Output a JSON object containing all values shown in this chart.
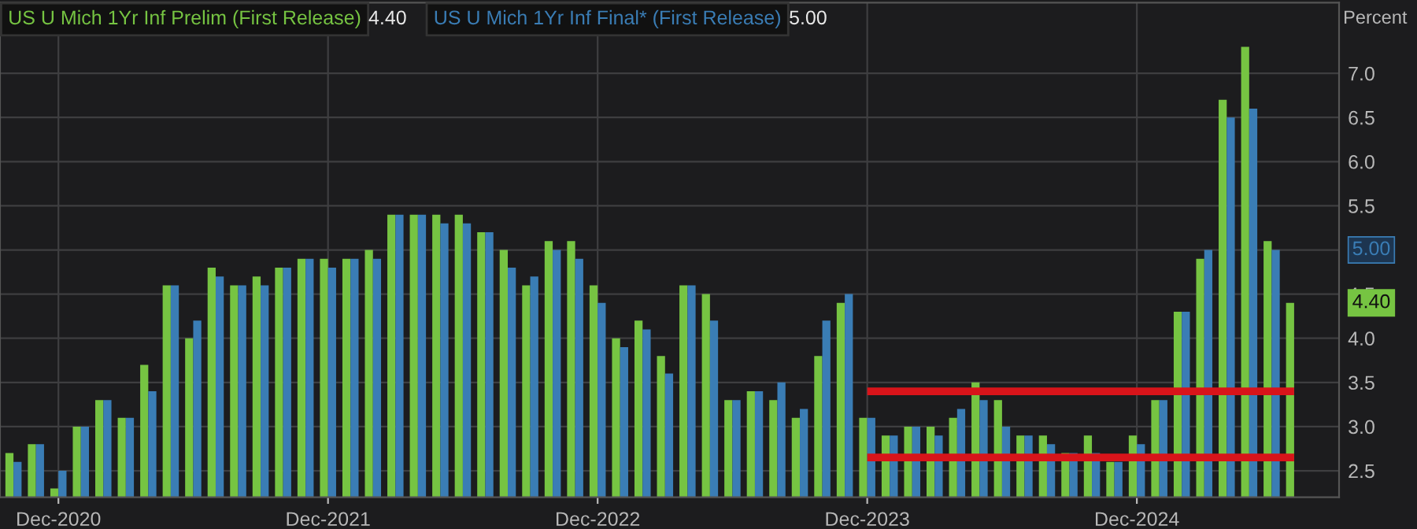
{
  "chart_data": {
    "type": "bar",
    "ylabel": "Percent",
    "categories": [
      null,
      null,
      "Dec-2020",
      null,
      null,
      null,
      null,
      null,
      null,
      null,
      null,
      null,
      null,
      null,
      "Dec-2021",
      null,
      null,
      null,
      null,
      null,
      null,
      null,
      null,
      null,
      null,
      null,
      "Dec-2022",
      null,
      null,
      null,
      null,
      null,
      null,
      null,
      null,
      null,
      null,
      null,
      "Dec-2023",
      null,
      null,
      null,
      null,
      null,
      null,
      null,
      null,
      null,
      null,
      null,
      "Dec-2024",
      null,
      null,
      null,
      null,
      null,
      null,
      null
    ],
    "series": [
      {
        "name": "US U Mich 1Yr Inf Prelim (First Release)",
        "color": "#76c442",
        "values": [
          2.7,
          2.8,
          2.3,
          3.0,
          3.3,
          3.1,
          3.7,
          4.6,
          4.0,
          4.8,
          4.6,
          4.7,
          4.8,
          4.9,
          4.9,
          4.9,
          5.0,
          5.4,
          5.4,
          5.4,
          5.4,
          5.2,
          5.0,
          4.6,
          5.1,
          5.1,
          4.6,
          4.0,
          4.2,
          3.8,
          4.6,
          4.5,
          3.3,
          3.4,
          3.3,
          3.1,
          3.8,
          4.4,
          3.1,
          2.9,
          3.0,
          3.0,
          3.1,
          3.5,
          3.3,
          2.9,
          2.9,
          2.7,
          2.9,
          2.6,
          2.9,
          3.3,
          4.3,
          4.9,
          6.7,
          7.3,
          5.1,
          4.4
        ]
      },
      {
        "name": "US U Mich 1Yr Inf Final* (First Release)",
        "color": "#3a7db5",
        "values": [
          2.6,
          2.8,
          2.5,
          3.0,
          3.3,
          3.1,
          3.4,
          4.6,
          4.2,
          4.7,
          4.6,
          4.6,
          4.8,
          4.9,
          4.8,
          4.9,
          4.9,
          5.4,
          5.4,
          5.3,
          5.3,
          5.2,
          4.8,
          4.7,
          5.0,
          4.9,
          4.4,
          3.9,
          4.1,
          3.6,
          4.6,
          4.2,
          3.3,
          3.4,
          3.5,
          3.2,
          4.2,
          4.5,
          3.1,
          2.9,
          3.0,
          2.9,
          3.2,
          3.3,
          3.0,
          2.9,
          2.8,
          2.7,
          2.7,
          2.6,
          2.8,
          3.3,
          4.3,
          5.0,
          6.5,
          6.6,
          5.0,
          null
        ]
      },
      {
        "type": "line",
        "color": "#d8141a",
        "values": [
          null,
          null,
          null,
          null,
          null,
          null,
          null,
          null,
          null,
          null,
          null,
          null,
          null,
          null,
          null,
          null,
          null,
          null,
          null,
          null,
          null,
          null,
          null,
          null,
          null,
          null,
          null,
          null,
          null,
          null,
          null,
          null,
          null,
          null,
          null,
          null,
          null,
          null,
          3.4,
          3.4,
          3.4,
          3.4,
          3.4,
          3.4,
          3.4,
          3.4,
          3.4,
          3.4,
          3.4,
          3.4,
          3.4,
          3.4,
          3.4,
          3.4,
          3.4,
          3.4,
          3.4,
          3.4
        ]
      },
      {
        "type": "line",
        "color": "#d8141a",
        "values": [
          null,
          null,
          null,
          null,
          null,
          null,
          null,
          null,
          null,
          null,
          null,
          null,
          null,
          null,
          null,
          null,
          null,
          null,
          null,
          null,
          null,
          null,
          null,
          null,
          null,
          null,
          null,
          null,
          null,
          null,
          null,
          null,
          null,
          null,
          null,
          null,
          null,
          null,
          2.65,
          2.65,
          2.65,
          2.65,
          2.65,
          2.65,
          2.65,
          2.65,
          2.65,
          2.65,
          2.65,
          2.65,
          2.65,
          2.65,
          2.65,
          2.65,
          2.65,
          2.65,
          2.65,
          2.65
        ]
      }
    ],
    "annotations": [
      "4.40",
      "5.00"
    ],
    "ylim": [
      2.2,
      7.8
    ],
    "yticks": [
      2.5,
      {
        "value": 3,
        "label": "3.0"
      },
      3.5,
      {
        "value": 4,
        "label": "4.0"
      },
      4.5,
      {
        "value": 5,
        "label": null
      },
      5.5,
      {
        "value": 6,
        "label": "6.0"
      },
      6.5,
      {
        "value": 7,
        "label": "7.0"
      }
    ],
    "grid": true,
    "legend": "top left"
  }
}
